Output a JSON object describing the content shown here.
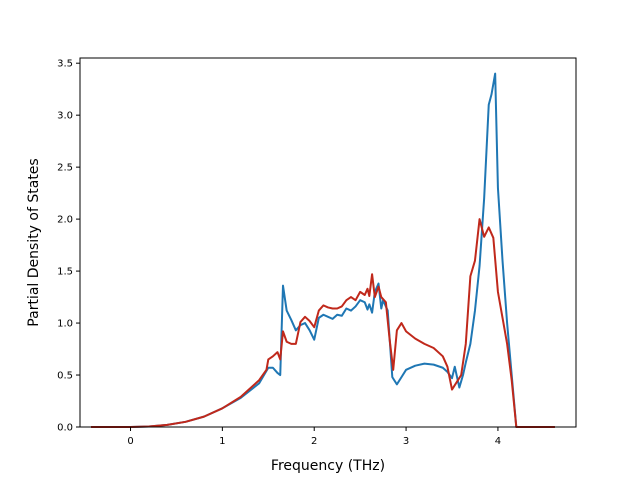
{
  "chart_data": {
    "type": "line",
    "title": "",
    "xlabel": "Frequency (THz)",
    "ylabel": "Partial Density of States",
    "xlim": [
      -0.55,
      4.85
    ],
    "ylim": [
      0.0,
      3.55
    ],
    "xticks": [
      0,
      1,
      2,
      3,
      4
    ],
    "yticks": [
      0.0,
      0.5,
      1.0,
      1.5,
      2.0,
      2.5,
      3.0,
      3.5
    ],
    "xtick_labels": [
      "0",
      "1",
      "2",
      "3",
      "4"
    ],
    "ytick_labels": [
      "0.0",
      "0.5",
      "1.0",
      "1.5",
      "2.0",
      "2.5",
      "3.0",
      "3.5"
    ],
    "grid": false,
    "legend": null,
    "series": [
      {
        "color": "#1f77b4",
        "points": [
          [
            -0.43,
            0.0
          ],
          [
            0.0,
            0.0
          ],
          [
            0.2,
            0.005
          ],
          [
            0.4,
            0.02
          ],
          [
            0.6,
            0.05
          ],
          [
            0.8,
            0.1
          ],
          [
            1.0,
            0.18
          ],
          [
            1.2,
            0.28
          ],
          [
            1.4,
            0.42
          ],
          [
            1.5,
            0.57
          ],
          [
            1.55,
            0.57
          ],
          [
            1.6,
            0.52
          ],
          [
            1.63,
            0.5
          ],
          [
            1.66,
            1.36
          ],
          [
            1.7,
            1.12
          ],
          [
            1.75,
            1.03
          ],
          [
            1.8,
            0.93
          ],
          [
            1.85,
            0.98
          ],
          [
            1.9,
            1.0
          ],
          [
            1.95,
            0.93
          ],
          [
            2.0,
            0.84
          ],
          [
            2.05,
            1.05
          ],
          [
            2.1,
            1.08
          ],
          [
            2.15,
            1.06
          ],
          [
            2.2,
            1.04
          ],
          [
            2.25,
            1.08
          ],
          [
            2.3,
            1.07
          ],
          [
            2.35,
            1.14
          ],
          [
            2.4,
            1.12
          ],
          [
            2.45,
            1.16
          ],
          [
            2.5,
            1.22
          ],
          [
            2.55,
            1.2
          ],
          [
            2.58,
            1.13
          ],
          [
            2.6,
            1.18
          ],
          [
            2.63,
            1.1
          ],
          [
            2.66,
            1.3
          ],
          [
            2.7,
            1.38
          ],
          [
            2.73,
            1.14
          ],
          [
            2.75,
            1.22
          ],
          [
            2.8,
            1.12
          ],
          [
            2.85,
            0.48
          ],
          [
            2.9,
            0.41
          ],
          [
            2.95,
            0.48
          ],
          [
            3.0,
            0.55
          ],
          [
            3.1,
            0.59
          ],
          [
            3.2,
            0.61
          ],
          [
            3.3,
            0.6
          ],
          [
            3.4,
            0.57
          ],
          [
            3.45,
            0.53
          ],
          [
            3.5,
            0.47
          ],
          [
            3.53,
            0.58
          ],
          [
            3.55,
            0.5
          ],
          [
            3.58,
            0.38
          ],
          [
            3.62,
            0.5
          ],
          [
            3.65,
            0.62
          ],
          [
            3.7,
            0.8
          ],
          [
            3.75,
            1.12
          ],
          [
            3.8,
            1.55
          ],
          [
            3.85,
            2.2
          ],
          [
            3.9,
            3.1
          ],
          [
            3.93,
            3.2
          ],
          [
            3.97,
            3.4
          ],
          [
            4.0,
            2.3
          ],
          [
            4.05,
            1.6
          ],
          [
            4.1,
            1.0
          ],
          [
            4.15,
            0.5
          ],
          [
            4.2,
            0.0
          ],
          [
            4.62,
            0.0
          ]
        ]
      },
      {
        "color": "#c0281b",
        "points": [
          [
            -0.43,
            0.0
          ],
          [
            0.0,
            0.0
          ],
          [
            0.2,
            0.005
          ],
          [
            0.4,
            0.02
          ],
          [
            0.6,
            0.05
          ],
          [
            0.8,
            0.1
          ],
          [
            1.0,
            0.18
          ],
          [
            1.2,
            0.29
          ],
          [
            1.4,
            0.45
          ],
          [
            1.48,
            0.55
          ],
          [
            1.5,
            0.65
          ],
          [
            1.55,
            0.68
          ],
          [
            1.6,
            0.72
          ],
          [
            1.63,
            0.65
          ],
          [
            1.66,
            0.92
          ],
          [
            1.7,
            0.82
          ],
          [
            1.75,
            0.8
          ],
          [
            1.8,
            0.8
          ],
          [
            1.85,
            1.01
          ],
          [
            1.9,
            1.06
          ],
          [
            1.95,
            1.02
          ],
          [
            2.0,
            0.96
          ],
          [
            2.05,
            1.12
          ],
          [
            2.1,
            1.17
          ],
          [
            2.15,
            1.15
          ],
          [
            2.2,
            1.14
          ],
          [
            2.25,
            1.14
          ],
          [
            2.3,
            1.16
          ],
          [
            2.35,
            1.22
          ],
          [
            2.4,
            1.25
          ],
          [
            2.45,
            1.22
          ],
          [
            2.5,
            1.3
          ],
          [
            2.55,
            1.27
          ],
          [
            2.58,
            1.33
          ],
          [
            2.6,
            1.26
          ],
          [
            2.63,
            1.47
          ],
          [
            2.66,
            1.25
          ],
          [
            2.7,
            1.35
          ],
          [
            2.73,
            1.25
          ],
          [
            2.78,
            1.2
          ],
          [
            2.82,
            0.85
          ],
          [
            2.86,
            0.55
          ],
          [
            2.9,
            0.93
          ],
          [
            2.95,
            1.0
          ],
          [
            3.0,
            0.92
          ],
          [
            3.1,
            0.85
          ],
          [
            3.2,
            0.8
          ],
          [
            3.3,
            0.76
          ],
          [
            3.4,
            0.68
          ],
          [
            3.45,
            0.58
          ],
          [
            3.5,
            0.36
          ],
          [
            3.55,
            0.43
          ],
          [
            3.6,
            0.5
          ],
          [
            3.65,
            0.8
          ],
          [
            3.7,
            1.45
          ],
          [
            3.75,
            1.6
          ],
          [
            3.8,
            2.0
          ],
          [
            3.85,
            1.83
          ],
          [
            3.9,
            1.92
          ],
          [
            3.95,
            1.82
          ],
          [
            4.0,
            1.3
          ],
          [
            4.05,
            1.05
          ],
          [
            4.1,
            0.8
          ],
          [
            4.15,
            0.45
          ],
          [
            4.2,
            0.0
          ],
          [
            4.62,
            0.0
          ]
        ]
      }
    ]
  }
}
